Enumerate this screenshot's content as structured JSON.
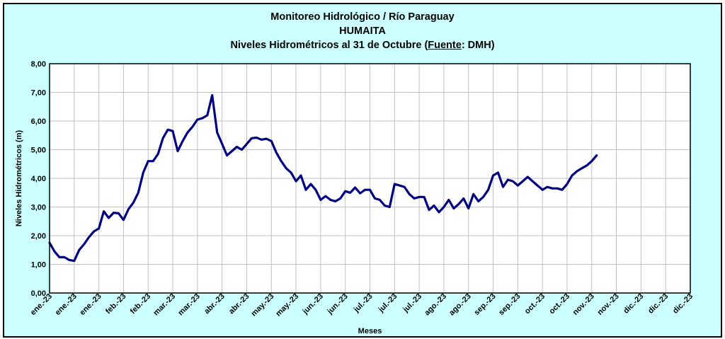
{
  "chart_data": {
    "type": "line",
    "title": "Monitoreo Hidrológico / Río Paraguay",
    "subtitle": "HUMAITA",
    "title_line3": {
      "prefix": "Niveles Hidrométricos  al 31 de Octubre (",
      "source_label": "Fuente",
      "suffix": ": DMH)"
    },
    "xlabel": "Meses",
    "ylabel": "Niveles Hidrométricos (m)",
    "ylim": [
      0,
      8
    ],
    "yticks": [
      "0,00",
      "1,00",
      "2,00",
      "3,00",
      "4,00",
      "5,00",
      "6,00",
      "7,00",
      "8,00"
    ],
    "xticks": [
      "ene.-23",
      "ene.-23",
      "ene.-23",
      "feb.-23",
      "feb.-23",
      "mar.-23",
      "mar.-23",
      "abr.-23",
      "abr.-23",
      "may.-23",
      "may.-23",
      "jun.-23",
      "jun.-23",
      "jul.-23",
      "jul.-23",
      "jul.-23",
      "ago.-23",
      "ago.-23",
      "sep.-23",
      "sep.-23",
      "oct.-23",
      "oct.-23",
      "nov.-23",
      "nov.-23",
      "dic.-23",
      "dic.-23",
      "dic.-23"
    ],
    "grid": true,
    "legend": "none",
    "colors": {
      "line": "#000080",
      "plot_bg": "#ffffff",
      "panel_bg": "#ccffff",
      "grid": "#c0c0c0"
    },
    "series": [
      {
        "x_tick_pos": [
          0,
          0.2,
          0.4,
          0.6,
          0.8,
          1.0,
          1.2,
          1.4,
          1.6,
          1.8,
          2.0,
          2.2,
          2.4,
          2.6,
          2.8,
          3.0,
          3.2,
          3.4,
          3.6,
          3.8,
          4.0,
          4.2,
          4.4,
          4.6,
          4.8,
          5.0,
          5.2,
          5.4,
          5.6,
          5.8,
          6.0,
          6.2,
          6.4,
          6.6,
          6.8,
          7.0,
          7.2,
          7.4,
          7.6,
          7.8,
          8.0,
          8.2,
          8.4,
          8.6,
          8.8,
          9.0,
          9.2,
          9.4,
          9.6,
          9.8,
          10.0,
          10.2,
          10.4,
          10.6,
          10.8,
          11.0,
          11.2,
          11.4,
          11.6,
          11.8,
          12.0,
          12.2,
          12.4,
          12.6,
          12.8,
          13.0,
          13.2,
          13.4,
          13.6,
          13.8,
          14.0,
          14.2,
          14.4,
          14.6,
          14.8,
          15.0,
          15.2,
          15.4,
          15.6,
          15.8,
          16.0,
          16.2,
          16.4,
          16.6,
          16.8,
          17.0,
          17.2,
          17.4,
          17.6,
          17.8,
          18.0,
          18.2,
          18.4,
          18.6,
          18.8,
          19.0,
          19.2,
          19.4,
          19.6,
          19.8,
          20.0,
          20.2,
          20.4,
          20.6,
          20.8,
          21.0,
          21.2,
          21.4,
          21.6,
          21.8,
          22.0,
          22.2
        ],
        "values": [
          1.75,
          1.45,
          1.25,
          1.25,
          1.15,
          1.12,
          1.5,
          1.7,
          1.95,
          2.15,
          2.25,
          2.85,
          2.62,
          2.8,
          2.78,
          2.55,
          2.92,
          3.15,
          3.5,
          4.2,
          4.6,
          4.6,
          4.85,
          5.4,
          5.7,
          5.65,
          4.95,
          5.3,
          5.6,
          5.8,
          6.05,
          6.1,
          6.2,
          6.9,
          5.6,
          5.2,
          4.8,
          4.95,
          5.1,
          5.0,
          5.2,
          5.4,
          5.42,
          5.35,
          5.38,
          5.3,
          4.9,
          4.6,
          4.35,
          4.2,
          3.9,
          4.1,
          3.6,
          3.8,
          3.6,
          3.25,
          3.38,
          3.25,
          3.2,
          3.3,
          3.55,
          3.5,
          3.68,
          3.48,
          3.6,
          3.6,
          3.3,
          3.25,
          3.05,
          3.0,
          3.8,
          3.75,
          3.7,
          3.45,
          3.3,
          3.35,
          3.35,
          2.9,
          3.05,
          2.82,
          3.0,
          3.25,
          2.95,
          3.1,
          3.3,
          2.95,
          3.45,
          3.2,
          3.35,
          3.6,
          4.1,
          4.2,
          3.7,
          3.95,
          3.9,
          3.75,
          3.9,
          4.05,
          3.9,
          3.75,
          3.6,
          3.7,
          3.65,
          3.65,
          3.6,
          3.8,
          4.1,
          4.25,
          4.35,
          4.45,
          4.6,
          4.8
        ]
      }
    ]
  }
}
